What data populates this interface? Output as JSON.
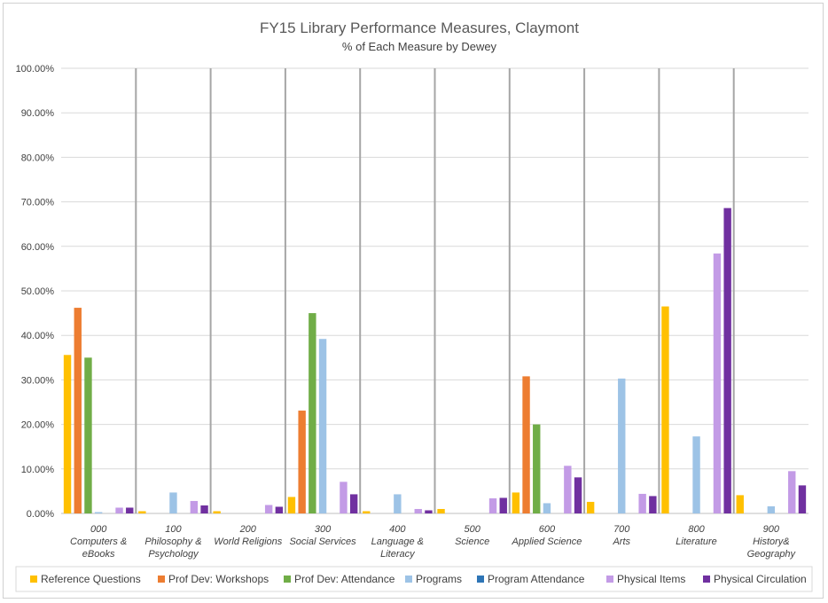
{
  "chart_data": {
    "type": "bar",
    "title": "FY15 Library Performance Measures, Claymont",
    "subtitle": "% of Each Measure by Dewey",
    "categories": [
      [
        "000",
        "Computers &",
        "eBooks"
      ],
      [
        "100",
        "Philosophy &",
        "Psychology"
      ],
      [
        "200",
        "World Religions"
      ],
      [
        "300",
        "Social Services"
      ],
      [
        "400",
        "Language &",
        "Literacy"
      ],
      [
        "500",
        "Science"
      ],
      [
        "600",
        "Applied Science"
      ],
      [
        "700",
        "Arts"
      ],
      [
        "800",
        "Literature"
      ],
      [
        "900",
        "History&",
        "Geography"
      ]
    ],
    "ylim": [
      0,
      100
    ],
    "yticks": [
      "0.00%",
      "10.00%",
      "20.00%",
      "30.00%",
      "40.00%",
      "50.00%",
      "60.00%",
      "70.00%",
      "80.00%",
      "90.00%",
      "100.00%"
    ],
    "legend_position": "bottom",
    "series": [
      {
        "name": "Reference Questions",
        "color": "#FFC000",
        "values": [
          35.6,
          0.5,
          0.5,
          3.7,
          0.5,
          1.0,
          4.7,
          2.6,
          46.5,
          4.1
        ]
      },
      {
        "name": "Prof Dev: Workshops",
        "color": "#ED7D31",
        "values": [
          46.2,
          0,
          0,
          23.1,
          0,
          0,
          30.8,
          0,
          0,
          0
        ]
      },
      {
        "name": "Prof Dev: Attendance",
        "color": "#70AD47",
        "values": [
          35.0,
          0,
          0,
          45.0,
          0,
          0,
          20.0,
          0,
          0,
          0
        ]
      },
      {
        "name": "Programs",
        "color": "#9DC3E6",
        "values": [
          0.3,
          4.7,
          0,
          39.2,
          4.3,
          0,
          2.3,
          30.3,
          17.3,
          1.6
        ]
      },
      {
        "name": "Program Attendance",
        "color": "#2E75B6",
        "values": [
          0,
          0,
          0,
          0,
          0,
          0,
          0,
          0,
          0,
          0
        ]
      },
      {
        "name": "Physical Items",
        "color": "#C39BE6",
        "values": [
          1.3,
          2.8,
          1.9,
          7.1,
          1.0,
          3.4,
          10.7,
          4.4,
          58.4,
          9.5
        ]
      },
      {
        "name": "Physical Circulation",
        "color": "#7030A0",
        "values": [
          1.3,
          1.8,
          1.5,
          4.3,
          0.7,
          3.5,
          8.1,
          3.9,
          68.6,
          6.3
        ]
      }
    ]
  }
}
